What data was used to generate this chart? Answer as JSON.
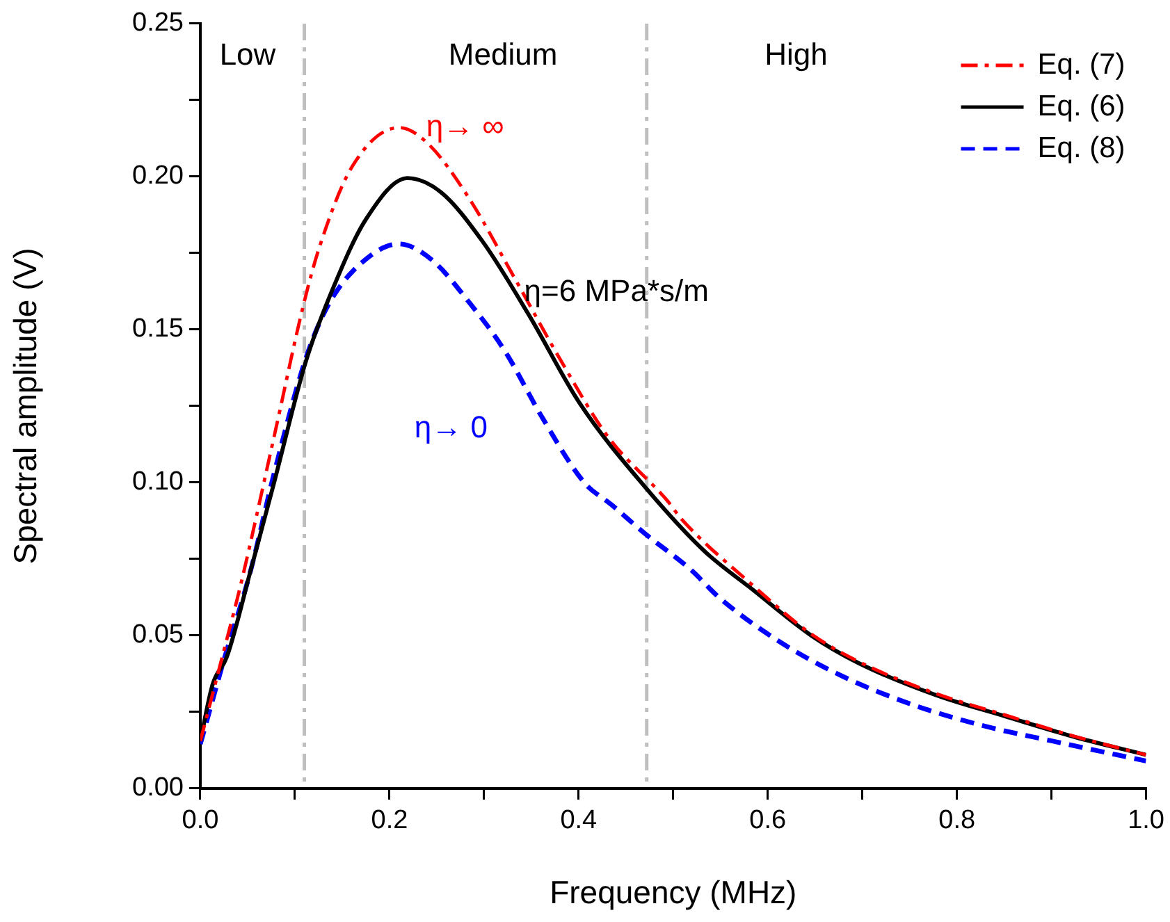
{
  "chart_data": {
    "type": "line",
    "xlabel": "Frequency (MHz)",
    "ylabel": "Spectral amplitude (V)",
    "xlim": [
      0,
      1.0
    ],
    "ylim": [
      0,
      0.25
    ],
    "xticks": [
      {
        "value": 0,
        "label": "0.0"
      },
      {
        "value": 0.1,
        "label": null
      },
      {
        "value": 0.2,
        "label": "0.2"
      },
      {
        "value": 0.3,
        "label": null
      },
      {
        "value": 0.4,
        "label": "0.4"
      },
      {
        "value": 0.5,
        "label": null
      },
      {
        "value": 0.6,
        "label": "0.6"
      },
      {
        "value": 0.7,
        "label": null
      },
      {
        "value": 0.8,
        "label": "0.8"
      },
      {
        "value": 0.9,
        "label": null
      },
      {
        "value": 1.0,
        "label": "1.0"
      }
    ],
    "yticks": [
      {
        "value": 0,
        "label": "0.00"
      },
      {
        "value": 0.025,
        "label": null
      },
      {
        "value": 0.05,
        "label": "0.05"
      },
      {
        "value": 0.075,
        "label": null
      },
      {
        "value": 0.1,
        "label": "0.10"
      },
      {
        "value": 0.125,
        "label": null
      },
      {
        "value": 0.15,
        "label": "0.15"
      },
      {
        "value": 0.175,
        "label": null
      },
      {
        "value": 0.2,
        "label": "0.20"
      },
      {
        "value": 0.225,
        "label": null
      },
      {
        "value": 0.25,
        "label": "0.25"
      }
    ],
    "grid": false,
    "legend": "top right",
    "marker": "none",
    "series": [
      {
        "name": "Eq. (7)",
        "color": "#ff0000",
        "line_style": "dashdot",
        "x": [
          0,
          0.024,
          0.043,
          0.078,
          0.109,
          0.126,
          0.16,
          0.21,
          0.24,
          0.284,
          0.332,
          0.381,
          0.431,
          0.494,
          0.509,
          0.582,
          0.646,
          0.696,
          0.778,
          0.851,
          0.925,
          1.0
        ],
        "values": [
          0.0155,
          0.044,
          0.067,
          0.115,
          0.158,
          0.177,
          0.203,
          0.216,
          0.211,
          0.193,
          0.167,
          0.14,
          0.115,
          0.094,
          0.088,
          0.067,
          0.0505,
          0.0415,
          0.031,
          0.024,
          0.017,
          0.011
        ]
      },
      {
        "name": "Eq. (6)",
        "color": "#000000",
        "line_style": "solid",
        "x": [
          0,
          0.013,
          0.028,
          0.053,
          0.078,
          0.112,
          0.141,
          0.175,
          0.219,
          0.254,
          0.298,
          0.347,
          0.401,
          0.469,
          0.534,
          0.582,
          0.646,
          0.696,
          0.778,
          0.851,
          0.925,
          1.0
        ],
        "values": [
          0.0155,
          0.034,
          0.043,
          0.071,
          0.1,
          0.14,
          0.164,
          0.186,
          0.1995,
          0.195,
          0.179,
          0.155,
          0.126,
          0.099,
          0.0773,
          0.0655,
          0.05,
          0.041,
          0.0305,
          0.0236,
          0.0168,
          0.011
        ]
      },
      {
        "name": "Eq. (8)",
        "color": "#0000ff",
        "line_style": "dashed",
        "x": [
          0,
          0.024,
          0.053,
          0.078,
          0.112,
          0.137,
          0.175,
          0.21,
          0.244,
          0.284,
          0.322,
          0.362,
          0.406,
          0.435,
          0.469,
          0.519,
          0.549,
          0.616,
          0.681,
          0.754,
          0.828,
          0.901,
          1.0
        ],
        "values": [
          0.0145,
          0.041,
          0.071,
          0.103,
          0.141,
          0.159,
          0.173,
          0.178,
          0.173,
          0.159,
          0.143,
          0.121,
          0.1,
          0.0927,
          0.0836,
          0.0714,
          0.0623,
          0.0473,
          0.0364,
          0.0273,
          0.0205,
          0.0155,
          0.009
        ]
      }
    ],
    "ref_lines": [
      {
        "axis": "x",
        "value": 0.11,
        "color": "#bfbfbf",
        "line_style": "dashdot"
      },
      {
        "axis": "x",
        "value": 0.472,
        "color": "#bfbfbf",
        "line_style": "dashdot"
      }
    ],
    "annotations": [
      "Low",
      "Medium",
      "High",
      "η→ ∞",
      "η=6 MPa*s/m",
      "η→ 0"
    ]
  }
}
